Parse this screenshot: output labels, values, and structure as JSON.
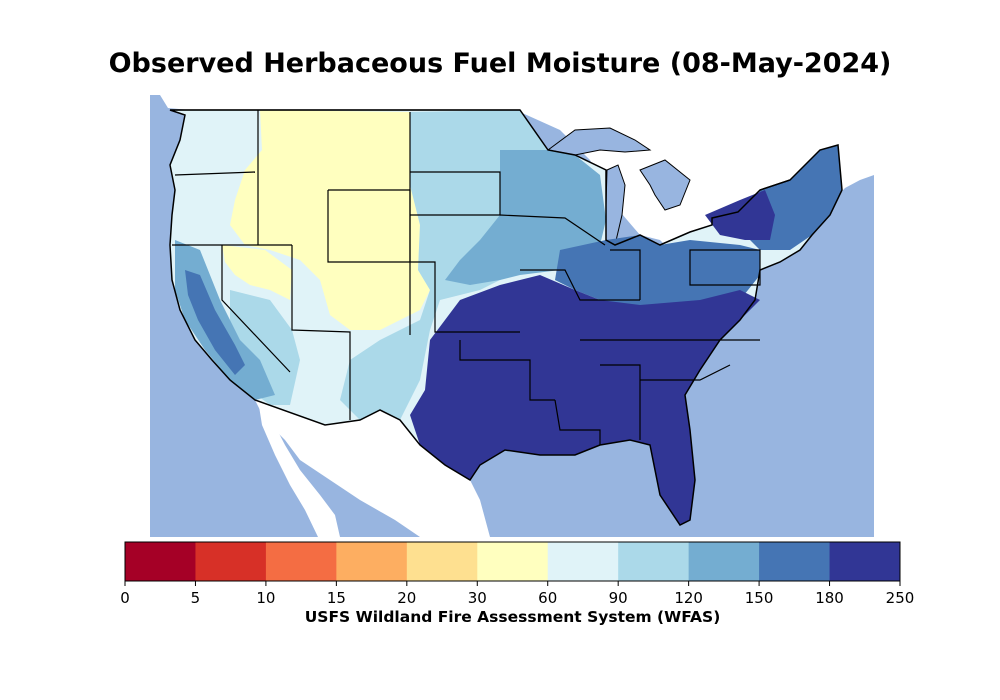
{
  "title": "Observed Herbaceous Fuel Moisture (08-May-2024)",
  "colorbar": {
    "caption": "USFS Wildland Fire Assessment System (WFAS)",
    "ticks": [
      "0",
      "5",
      "10",
      "15",
      "20",
      "30",
      "60",
      "90",
      "120",
      "150",
      "180",
      "250"
    ],
    "bins": [
      {
        "range": "0-5",
        "color": "#a50026"
      },
      {
        "range": "5-10",
        "color": "#d73027"
      },
      {
        "range": "10-15",
        "color": "#f46d43"
      },
      {
        "range": "15-20",
        "color": "#fdae61"
      },
      {
        "range": "20-30",
        "color": "#fee090"
      },
      {
        "range": "30-60",
        "color": "#ffffbf"
      },
      {
        "range": "60-90",
        "color": "#e0f3f8"
      },
      {
        "range": "90-120",
        "color": "#abd9e9"
      },
      {
        "range": "120-150",
        "color": "#74add1"
      },
      {
        "range": "150-180",
        "color": "#4575b4"
      },
      {
        "range": "180-250",
        "color": "#313695"
      }
    ]
  },
  "map": {
    "ocean_color": "#98b5e0",
    "land_outside_color": "#ffffff",
    "border_color": "#000000"
  }
}
